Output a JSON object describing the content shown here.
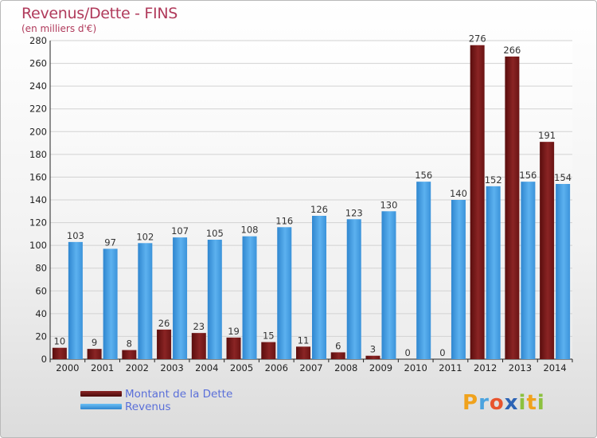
{
  "header": {
    "title": "Revenus/Dette - FINS",
    "subtitle": "(en milliers d'€)"
  },
  "colors": {
    "dette": "#7a1818",
    "revenus": "#4a9fe3",
    "title": "#b03a5b",
    "legend_text": "#5a6fd9"
  },
  "chart_data": {
    "type": "bar",
    "title": "Revenus/Dette - FINS",
    "subtitle": "(en milliers d'€)",
    "categories": [
      "2000",
      "2001",
      "2002",
      "2003",
      "2004",
      "2005",
      "2006",
      "2007",
      "2008",
      "2009",
      "2010",
      "2011",
      "2012",
      "2013",
      "2014"
    ],
    "series": [
      {
        "name": "Montant de la Dette",
        "values": [
          10,
          9,
          8,
          26,
          23,
          19,
          15,
          11,
          6,
          3,
          0,
          0,
          276,
          266,
          191
        ]
      },
      {
        "name": "Revenus",
        "values": [
          103,
          97,
          102,
          107,
          105,
          108,
          116,
          126,
          123,
          130,
          156,
          140,
          152,
          156,
          154
        ]
      }
    ],
    "ylim": [
      0,
      280
    ],
    "yticks": [
      0,
      20,
      40,
      60,
      80,
      100,
      120,
      140,
      160,
      180,
      200,
      220,
      240,
      260,
      280
    ],
    "grid": true,
    "legend_position": "bottom-left"
  },
  "legend": {
    "items": [
      {
        "label": "Montant de la Dette"
      },
      {
        "label": "Revenus"
      }
    ]
  },
  "logo": {
    "letters": [
      {
        "ch": "P",
        "color": "#f0a21c"
      },
      {
        "ch": "r",
        "color": "#4aa3df"
      },
      {
        "ch": "o",
        "color": "#e8542e"
      },
      {
        "ch": "x",
        "color": "#2c63b5"
      },
      {
        "ch": "i",
        "color": "#8cc13f"
      },
      {
        "ch": "t",
        "color": "#f0a21c"
      },
      {
        "ch": "i",
        "color": "#8cc13f"
      }
    ]
  }
}
